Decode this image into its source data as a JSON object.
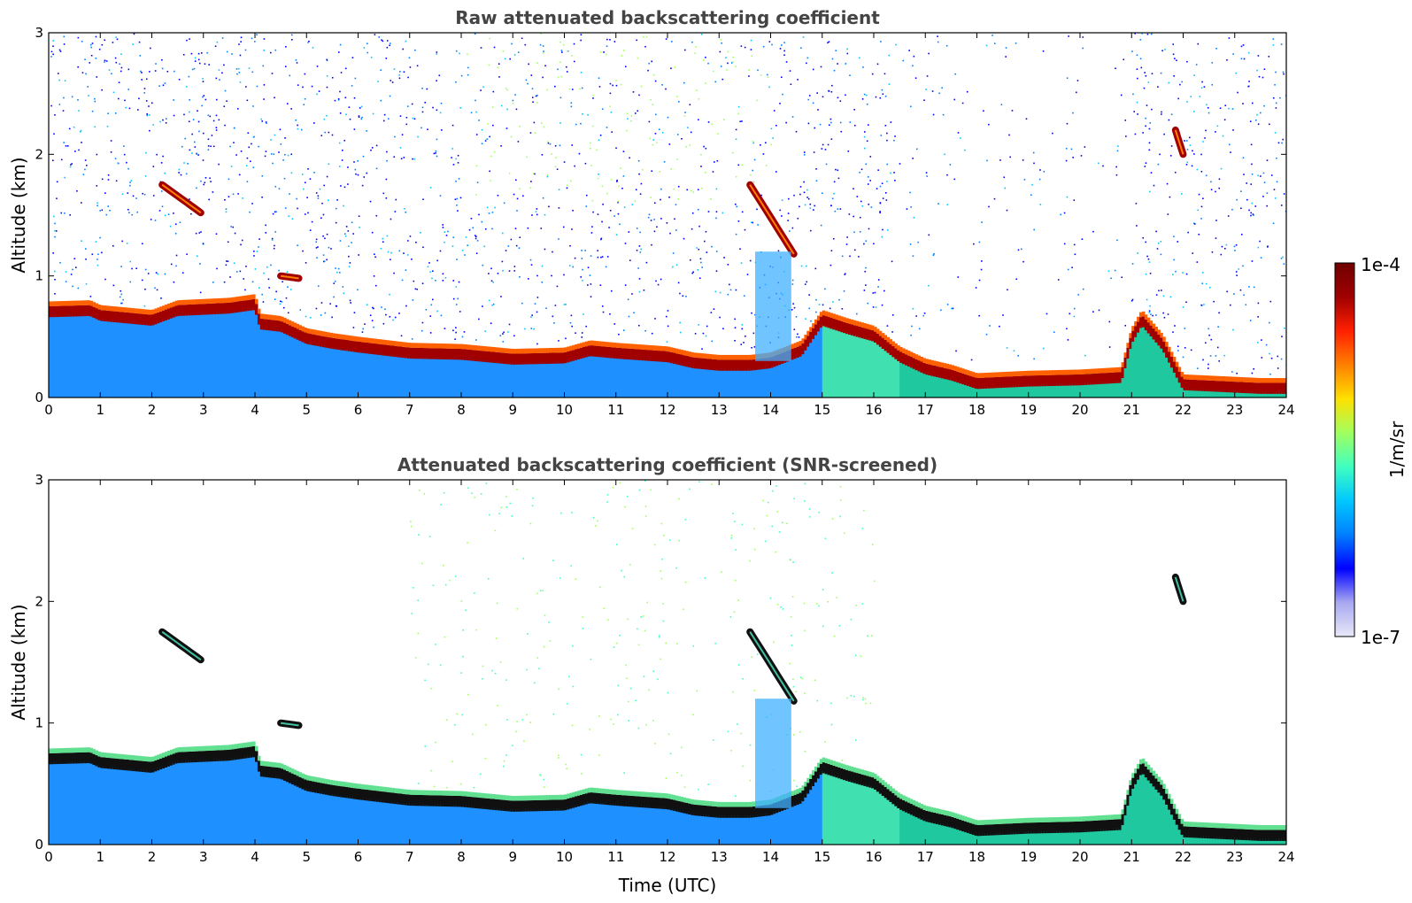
{
  "chart_data": [
    {
      "type": "heatmap",
      "title": "Raw attenuated backscattering coefficient",
      "xlabel": "",
      "ylabel": "Altitude (km)",
      "xlim": [
        0,
        24
      ],
      "ylim": [
        0,
        3
      ],
      "x_ticks": [
        "0",
        "1",
        "2",
        "3",
        "4",
        "5",
        "6",
        "7",
        "8",
        "9",
        "10",
        "11",
        "12",
        "13",
        "14",
        "15",
        "16",
        "17",
        "18",
        "19",
        "20",
        "21",
        "22",
        "23",
        "24"
      ],
      "y_ticks": [
        "0",
        "1",
        "2",
        "3"
      ],
      "screened": false
    },
    {
      "type": "heatmap",
      "title": "Attenuated backscattering coefficient (SNR-screened)",
      "xlabel": "Time (UTC)",
      "ylabel": "Altitude (km)",
      "xlim": [
        0,
        24
      ],
      "ylim": [
        0,
        3
      ],
      "x_ticks": [
        "0",
        "1",
        "2",
        "3",
        "4",
        "5",
        "6",
        "7",
        "8",
        "9",
        "10",
        "11",
        "12",
        "13",
        "14",
        "15",
        "16",
        "17",
        "18",
        "19",
        "20",
        "21",
        "22",
        "23",
        "24"
      ],
      "y_ticks": [
        "0",
        "1",
        "2",
        "3"
      ],
      "screened": true
    }
  ],
  "boundary_layer_top_km": [
    [
      0,
      0.72
    ],
    [
      0.8,
      0.73
    ],
    [
      1.0,
      0.69
    ],
    [
      1.5,
      0.67
    ],
    [
      2.0,
      0.65
    ],
    [
      2.5,
      0.73
    ],
    [
      3.0,
      0.74
    ],
    [
      3.5,
      0.75
    ],
    [
      4.0,
      0.78
    ],
    [
      4.1,
      0.62
    ],
    [
      4.5,
      0.6
    ],
    [
      5.0,
      0.5
    ],
    [
      5.5,
      0.46
    ],
    [
      6.0,
      0.43
    ],
    [
      7.0,
      0.38
    ],
    [
      8.0,
      0.37
    ],
    [
      9.0,
      0.33
    ],
    [
      10.0,
      0.34
    ],
    [
      10.5,
      0.4
    ],
    [
      11.0,
      0.38
    ],
    [
      12.0,
      0.35
    ],
    [
      12.5,
      0.3
    ],
    [
      13.0,
      0.28
    ],
    [
      13.6,
      0.28
    ],
    [
      14.0,
      0.3
    ],
    [
      14.6,
      0.4
    ],
    [
      15.0,
      0.65
    ],
    [
      15.5,
      0.58
    ],
    [
      16.0,
      0.52
    ],
    [
      16.5,
      0.35
    ],
    [
      17.0,
      0.25
    ],
    [
      17.5,
      0.2
    ],
    [
      18.0,
      0.13
    ],
    [
      18.5,
      0.14
    ],
    [
      19.0,
      0.15
    ],
    [
      20.0,
      0.16
    ],
    [
      20.8,
      0.18
    ],
    [
      21.0,
      0.5
    ],
    [
      21.2,
      0.65
    ],
    [
      21.6,
      0.45
    ],
    [
      22.0,
      0.12
    ],
    [
      22.5,
      0.11
    ],
    [
      23.0,
      0.1
    ],
    [
      23.5,
      0.09
    ],
    [
      24.0,
      0.09
    ]
  ],
  "elevated_layers": [
    {
      "start": 2.2,
      "end": 2.95,
      "alt_start": 1.75,
      "alt_end": 1.52
    },
    {
      "start": 13.6,
      "end": 14.45,
      "alt_start": 1.75,
      "alt_end": 1.18
    },
    {
      "start": 21.85,
      "end": 22.0,
      "alt_start": 2.2,
      "alt_end": 2.0
    },
    {
      "start": 4.5,
      "end": 4.85,
      "alt_start": 1.0,
      "alt_end": 0.98
    }
  ],
  "colorbar": {
    "label": "1/m/sr",
    "max_label": "1e-4",
    "min_label": "1e-7",
    "colors": [
      "#e8e8f8",
      "#a8a8f0",
      "#0000ff",
      "#0080ff",
      "#00c8ff",
      "#40ffc0",
      "#a0ff60",
      "#ffe000",
      "#ff8000",
      "#ff2000",
      "#a00000",
      "#700000"
    ]
  }
}
